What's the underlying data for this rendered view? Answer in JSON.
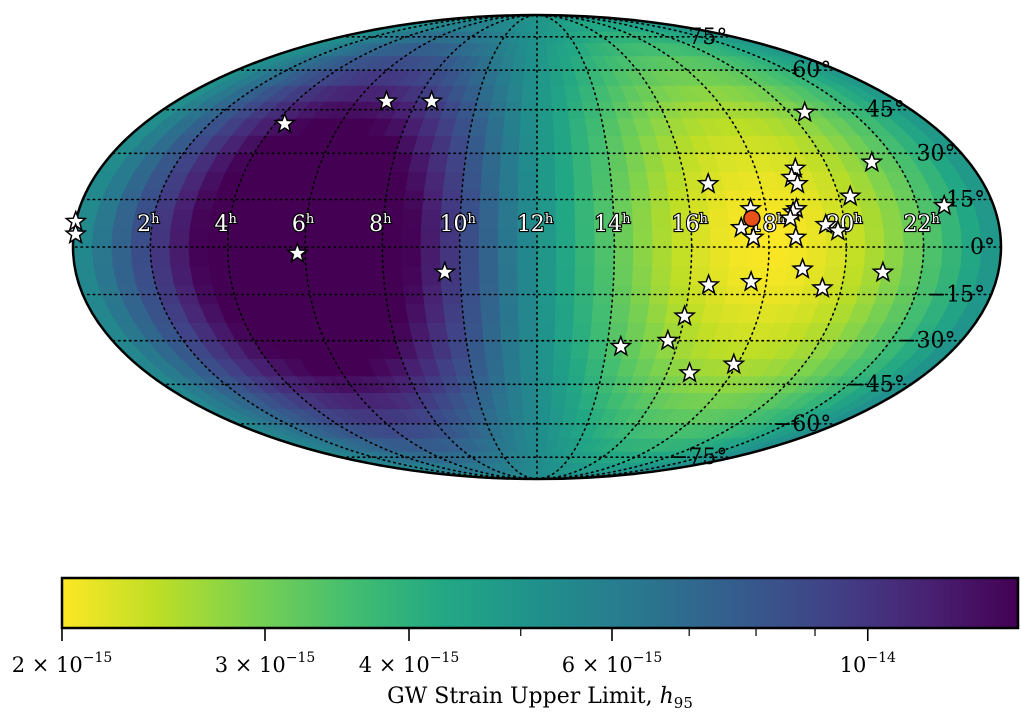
{
  "chart_data": {
    "type": "heatmap",
    "projection": "mollweide",
    "title": "",
    "colormap": "viridis_r",
    "ra_labels": [
      "22h",
      "20h",
      "18h",
      "16h",
      "14h",
      "12h",
      "10h",
      "8h",
      "6h",
      "4h",
      "2h"
    ],
    "dec_labels": [
      "75°",
      "60°",
      "45°",
      "30°",
      "15°",
      "0°",
      "−15°",
      "−30°",
      "−45°",
      "−60°",
      "−75°"
    ],
    "grid": true,
    "colorbar": {
      "label": "GW Strain Upper Limit, h95",
      "label_text": "GW Strain Upper Limit, ",
      "label_symbol": "h",
      "label_subscript": "95",
      "scale": "log",
      "range": [
        2e-15,
        1.35e-14
      ],
      "major_ticks": [
        {
          "value": 2e-15,
          "mantissa": "2 × 10",
          "exp": "−15"
        },
        {
          "value": 3e-15,
          "mantissa": "3 × 10",
          "exp": "−15"
        },
        {
          "value": 4e-15,
          "mantissa": "4 × 10",
          "exp": "−15"
        },
        {
          "value": 6e-15,
          "mantissa": "6 × 10",
          "exp": "−15"
        },
        {
          "value": 1e-14,
          "mantissa": "10",
          "exp": "−14"
        }
      ],
      "minor_ticks": [
        5e-15,
        7e-15,
        8e-15,
        9e-15
      ]
    },
    "sky_map": {
      "hot_spot": {
        "ra_hours": 18.0,
        "dec_deg": 10,
        "h95": 2e-15
      },
      "cold_spot": {
        "ra_hours": 6.0,
        "dec_deg": 5,
        "h95": 1.35e-14
      }
    },
    "pulsars": [
      {
        "ra_hours": 20.5,
        "dec_deg": 44
      },
      {
        "ra_hours": 21.3,
        "dec_deg": 27
      },
      {
        "ra_hours": 22.7,
        "dec_deg": 13
      },
      {
        "ra_hours": 20.3,
        "dec_deg": 16
      },
      {
        "ra_hours": 19.1,
        "dec_deg": 25
      },
      {
        "ra_hours": 18.9,
        "dec_deg": 22
      },
      {
        "ra_hours": 19.0,
        "dec_deg": 20
      },
      {
        "ra_hours": 18.8,
        "dec_deg": 12
      },
      {
        "ra_hours": 18.7,
        "dec_deg": 11
      },
      {
        "ra_hours": 18.6,
        "dec_deg": 9
      },
      {
        "ra_hours": 19.5,
        "dec_deg": 7
      },
      {
        "ra_hours": 19.8,
        "dec_deg": 5
      },
      {
        "ra_hours": 18.7,
        "dec_deg": 3
      },
      {
        "ra_hours": 17.6,
        "dec_deg": 12
      },
      {
        "ra_hours": 17.3,
        "dec_deg": 6
      },
      {
        "ra_hours": 17.6,
        "dec_deg": 3
      },
      {
        "ra_hours": 16.6,
        "dec_deg": 20
      },
      {
        "ra_hours": 21.0,
        "dec_deg": -8
      },
      {
        "ra_hours": 18.9,
        "dec_deg": -7
      },
      {
        "ra_hours": 19.5,
        "dec_deg": -13
      },
      {
        "ra_hours": 17.6,
        "dec_deg": -11
      },
      {
        "ra_hours": 16.5,
        "dec_deg": -12
      },
      {
        "ra_hours": 16.0,
        "dec_deg": -22
      },
      {
        "ra_hours": 15.7,
        "dec_deg": -30
      },
      {
        "ra_hours": 14.4,
        "dec_deg": -32
      },
      {
        "ra_hours": 17.9,
        "dec_deg": -38
      },
      {
        "ra_hours": 16.7,
        "dec_deg": -41
      },
      {
        "ra_hours": 8.5,
        "dec_deg": 48
      },
      {
        "ra_hours": 7.0,
        "dec_deg": 48
      },
      {
        "ra_hours": 4.3,
        "dec_deg": 40
      },
      {
        "ra_hours": 9.6,
        "dec_deg": -8
      },
      {
        "ra_hours": 5.8,
        "dec_deg": -2
      },
      {
        "ra_hours": 0.0,
        "dec_deg": 8
      },
      {
        "ra_hours": 0.05,
        "dec_deg": 4
      }
    ],
    "highlight_source": {
      "ra_hours": 17.6,
      "dec_deg": 9,
      "color": "#e8501a"
    }
  }
}
